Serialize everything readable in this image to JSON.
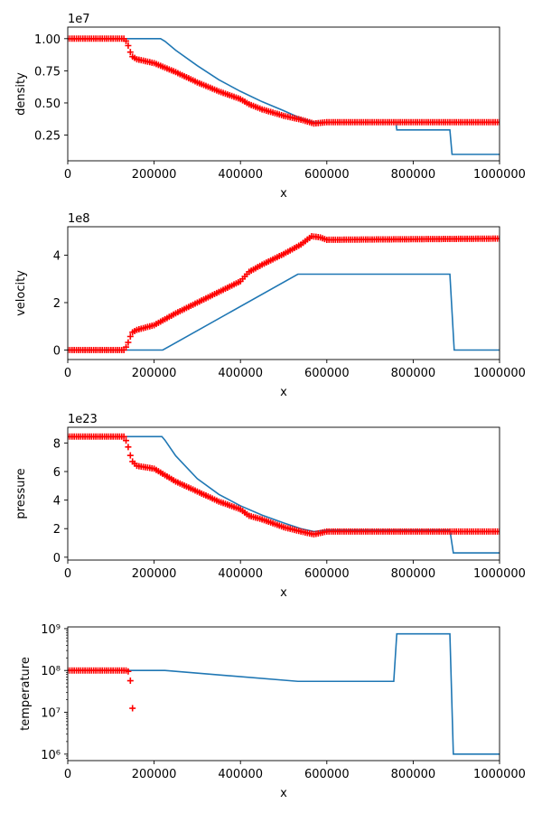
{
  "chart_data": [
    {
      "type": "line",
      "ylabel": "density",
      "xlabel": "x",
      "offset_label": "1e7",
      "scale": "linear",
      "xlim": [
        0,
        1000000
      ],
      "ylim": [
        0.05,
        1.09
      ],
      "xticks": [
        0,
        200000,
        400000,
        600000,
        800000,
        1000000
      ],
      "xtick_labels": [
        "0",
        "200000",
        "400000",
        "600000",
        "800000",
        "1000000"
      ],
      "yticks": [
        0.25,
        0.5,
        0.75,
        1.0
      ],
      "ytick_labels": [
        "0.25",
        "0.50",
        "0.75",
        "1.00"
      ],
      "series": [
        {
          "style": "line",
          "color": "#1f77b4",
          "points": [
            [
              0,
              1.0
            ],
            [
              215000,
              1.0
            ],
            [
              225000,
              0.98
            ],
            [
              250000,
              0.91
            ],
            [
              300000,
              0.79
            ],
            [
              350000,
              0.68
            ],
            [
              400000,
              0.59
            ],
            [
              450000,
              0.51
            ],
            [
              500000,
              0.44
            ],
            [
              540000,
              0.38
            ],
            [
              570000,
              0.35
            ],
            [
              760000,
              0.35
            ],
            [
              762000,
              0.29
            ],
            [
              885000,
              0.29
            ],
            [
              890000,
              0.1
            ],
            [
              1000000,
              0.1
            ]
          ]
        },
        {
          "style": "markers",
          "color": "#ff0000",
          "marker": "+",
          "points": [
            [
              0,
              1.0
            ],
            [
              130000,
              1.0
            ],
            [
              138000,
              0.97
            ],
            [
              143000,
              0.91
            ],
            [
              150000,
              0.86
            ],
            [
              160000,
              0.84
            ],
            [
              200000,
              0.81
            ],
            [
              250000,
              0.74
            ],
            [
              300000,
              0.66
            ],
            [
              350000,
              0.59
            ],
            [
              400000,
              0.53
            ],
            [
              420000,
              0.49
            ],
            [
              450000,
              0.45
            ],
            [
              500000,
              0.4
            ],
            [
              540000,
              0.37
            ],
            [
              570000,
              0.34
            ],
            [
              600000,
              0.35
            ],
            [
              1000000,
              0.35
            ]
          ]
        }
      ]
    },
    {
      "type": "line",
      "ylabel": "velocity",
      "xlabel": "x",
      "offset_label": "1e8",
      "scale": "linear",
      "xlim": [
        0,
        1000000
      ],
      "ylim": [
        -0.4,
        5.2
      ],
      "xticks": [
        0,
        200000,
        400000,
        600000,
        800000,
        1000000
      ],
      "xtick_labels": [
        "0",
        "200000",
        "400000",
        "600000",
        "800000",
        "1000000"
      ],
      "yticks": [
        0,
        2,
        4
      ],
      "ytick_labels": [
        "0",
        "2",
        "4"
      ],
      "series": [
        {
          "style": "line",
          "color": "#1f77b4",
          "points": [
            [
              0,
              0
            ],
            [
              220000,
              0
            ],
            [
              533000,
              3.2
            ],
            [
              885000,
              3.2
            ],
            [
              895000,
              0
            ],
            [
              1000000,
              0
            ]
          ]
        },
        {
          "style": "markers",
          "color": "#ff0000",
          "marker": "+",
          "points": [
            [
              0,
              0
            ],
            [
              130000,
              0
            ],
            [
              138000,
              0.2
            ],
            [
              143000,
              0.5
            ],
            [
              150000,
              0.75
            ],
            [
              160000,
              0.85
            ],
            [
              200000,
              1.05
            ],
            [
              250000,
              1.55
            ],
            [
              300000,
              2.0
            ],
            [
              350000,
              2.45
            ],
            [
              400000,
              2.9
            ],
            [
              420000,
              3.3
            ],
            [
              450000,
              3.6
            ],
            [
              500000,
              4.05
            ],
            [
              540000,
              4.45
            ],
            [
              565000,
              4.8
            ],
            [
              585000,
              4.75
            ],
            [
              600000,
              4.65
            ],
            [
              1000000,
              4.7
            ]
          ]
        }
      ]
    },
    {
      "type": "line",
      "ylabel": "pressure",
      "xlabel": "x",
      "offset_label": "1e23",
      "scale": "linear",
      "xlim": [
        0,
        1000000
      ],
      "ylim": [
        -0.2,
        9.1
      ],
      "xticks": [
        0,
        200000,
        400000,
        600000,
        800000,
        1000000
      ],
      "xtick_labels": [
        "0",
        "200000",
        "400000",
        "600000",
        "800000",
        "1000000"
      ],
      "yticks": [
        0,
        2,
        4,
        6,
        8
      ],
      "ytick_labels": [
        "0",
        "2",
        "4",
        "6",
        "8"
      ],
      "series": [
        {
          "style": "line",
          "color": "#1f77b4",
          "points": [
            [
              0,
              8.45
            ],
            [
              218000,
              8.45
            ],
            [
              225000,
              8.2
            ],
            [
              250000,
              7.1
            ],
            [
              300000,
              5.5
            ],
            [
              350000,
              4.4
            ],
            [
              400000,
              3.6
            ],
            [
              450000,
              2.95
            ],
            [
              500000,
              2.4
            ],
            [
              540000,
              2.0
            ],
            [
              570000,
              1.8
            ],
            [
              600000,
              1.9
            ],
            [
              885000,
              1.9
            ],
            [
              893000,
              0.3
            ],
            [
              1000000,
              0.3
            ]
          ]
        },
        {
          "style": "markers",
          "color": "#ff0000",
          "marker": "+",
          "points": [
            [
              0,
              8.45
            ],
            [
              130000,
              8.45
            ],
            [
              138000,
              8.0
            ],
            [
              143000,
              7.3
            ],
            [
              150000,
              6.7
            ],
            [
              160000,
              6.4
            ],
            [
              200000,
              6.2
            ],
            [
              250000,
              5.3
            ],
            [
              300000,
              4.6
            ],
            [
              350000,
              3.9
            ],
            [
              400000,
              3.35
            ],
            [
              420000,
              2.9
            ],
            [
              450000,
              2.65
            ],
            [
              500000,
              2.1
            ],
            [
              540000,
              1.8
            ],
            [
              570000,
              1.6
            ],
            [
              600000,
              1.8
            ],
            [
              1000000,
              1.8
            ]
          ]
        }
      ]
    },
    {
      "type": "line",
      "ylabel": "temperature",
      "xlabel": "x",
      "scale": "log",
      "xlim": [
        0,
        1000000
      ],
      "ylim": [
        700000,
        1100000000
      ],
      "xticks": [
        0,
        200000,
        400000,
        600000,
        800000,
        1000000
      ],
      "xtick_labels": [
        "0",
        "200000",
        "400000",
        "600000",
        "800000",
        "1000000"
      ],
      "yticks": [
        1000000,
        10000000,
        100000000,
        1000000000
      ],
      "ytick_labels": [
        "10⁶",
        "10⁷",
        "10⁸",
        "10⁹"
      ],
      "series": [
        {
          "style": "line",
          "color": "#1f77b4",
          "points": [
            [
              0,
              100000000
            ],
            [
              225000,
              100000000
            ],
            [
              533000,
              55000000
            ],
            [
              755000,
              55000000
            ],
            [
              762000,
              750000000
            ],
            [
              885000,
              750000000
            ],
            [
              893000,
              1000000
            ],
            [
              1000000,
              1000000
            ]
          ]
        },
        {
          "style": "markers",
          "color": "#ff0000",
          "marker": "+",
          "explicit": true,
          "points": [
            [
              0,
              100000000
            ],
            [
              5000,
              100000000
            ],
            [
              10000,
              100000000
            ],
            [
              15000,
              100000000
            ],
            [
              20000,
              100000000
            ],
            [
              25000,
              100000000
            ],
            [
              30000,
              100000000
            ],
            [
              35000,
              100000000
            ],
            [
              40000,
              100000000
            ],
            [
              45000,
              100000000
            ],
            [
              50000,
              100000000
            ],
            [
              55000,
              100000000
            ],
            [
              60000,
              100000000
            ],
            [
              65000,
              100000000
            ],
            [
              70000,
              100000000
            ],
            [
              75000,
              100000000
            ],
            [
              80000,
              100000000
            ],
            [
              85000,
              100000000
            ],
            [
              90000,
              100000000
            ],
            [
              95000,
              100000000
            ],
            [
              100000,
              100000000
            ],
            [
              105000,
              100000000
            ],
            [
              110000,
              100000000
            ],
            [
              115000,
              100000000
            ],
            [
              120000,
              100000000
            ],
            [
              125000,
              100000000
            ],
            [
              130000,
              100000000
            ],
            [
              135000,
              100000000
            ],
            [
              140000,
              95000000
            ],
            [
              145000,
              57000000
            ],
            [
              150000,
              12500000
            ]
          ]
        }
      ]
    }
  ]
}
